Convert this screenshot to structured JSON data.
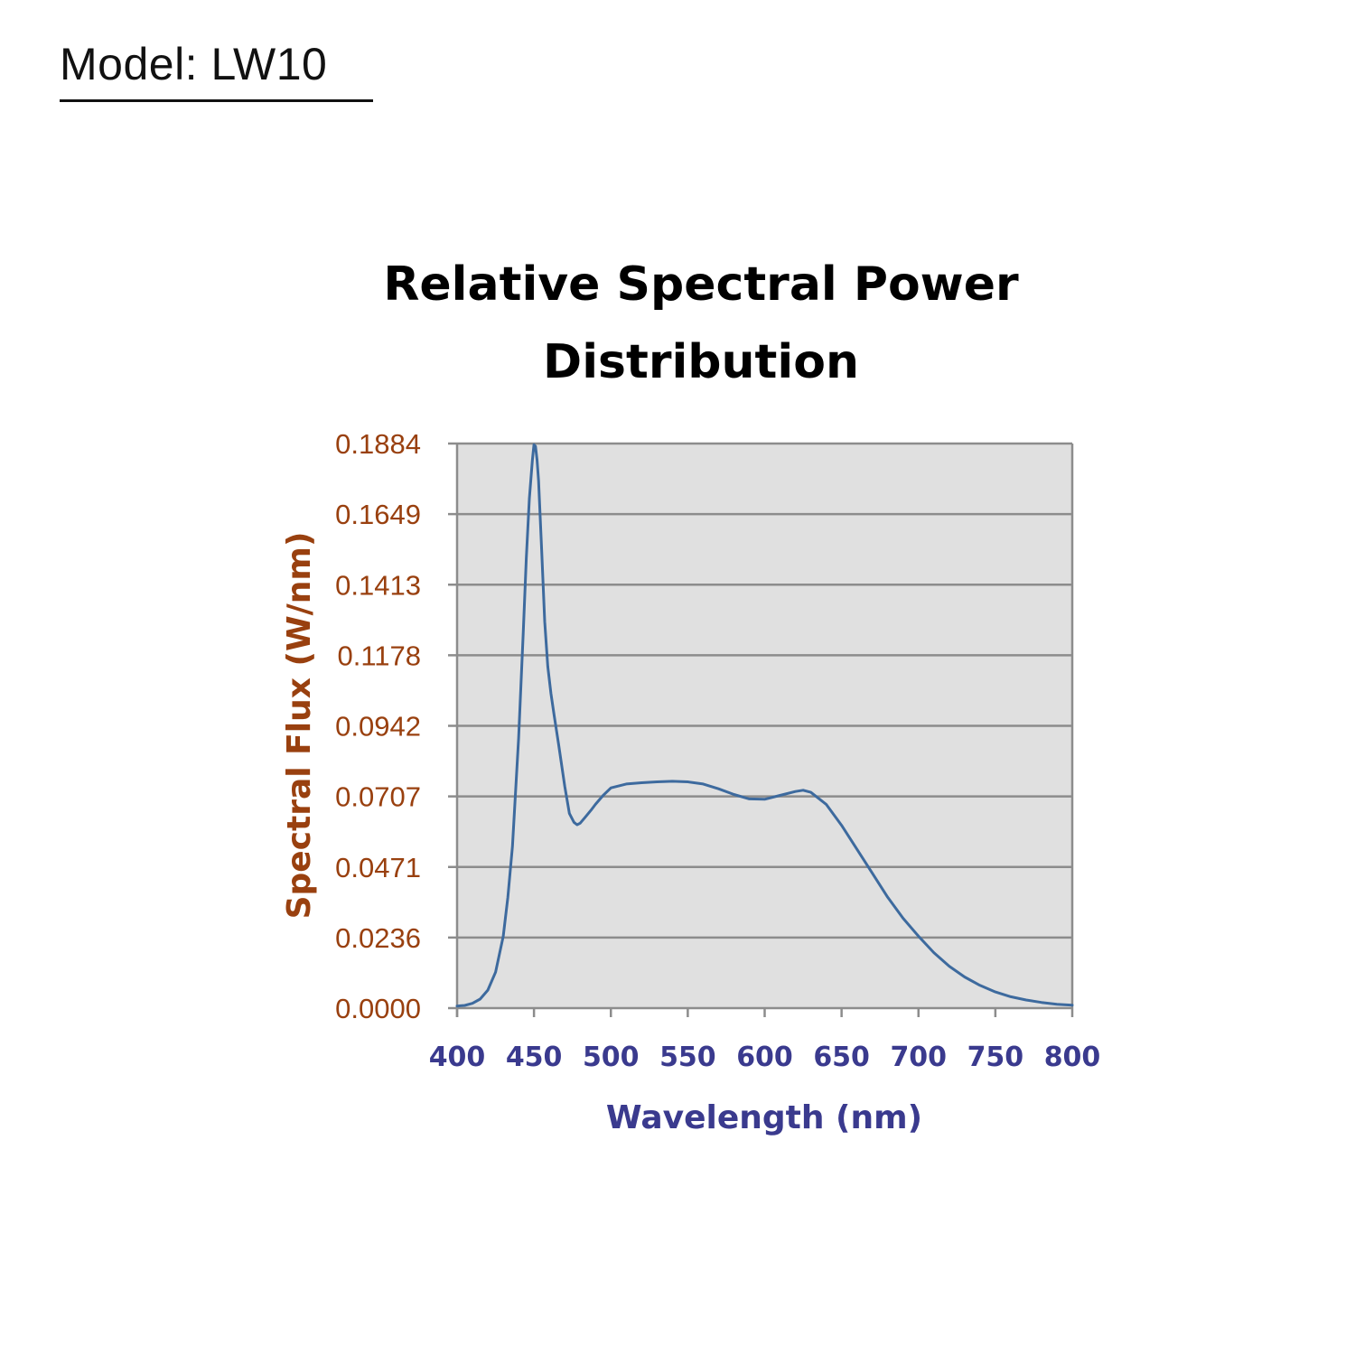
{
  "header": {
    "model_label": "Model: LW10"
  },
  "colors": {
    "plot_background": "#e0e0e0",
    "gridline": "#8c8c8c",
    "series_line": "#3d6a9e",
    "y_axis_text": "#99400f",
    "x_axis_text": "#3a3a8e"
  },
  "chart_data": {
    "type": "line",
    "title_lines": [
      "Relative Spectral Power",
      "Distribution"
    ],
    "xlabel": "Wavelength (nm)",
    "ylabel": "Spectral Flux (W/nm)",
    "xlim": [
      400,
      800
    ],
    "ylim": [
      0,
      0.1884
    ],
    "xticks": [
      "400",
      "450",
      "500",
      "550",
      "600",
      "650",
      "700",
      "750",
      "800"
    ],
    "yticks": [
      "0.0000",
      "0.0236",
      "0.0471",
      "0.0707",
      "0.0942",
      "0.1178",
      "0.1413",
      "0.1649",
      "0.1884"
    ],
    "grid": true,
    "legend": false,
    "series": [
      {
        "x": [
          400,
          405,
          410,
          415,
          420,
          425,
          430,
          433,
          436,
          440,
          443,
          445,
          447,
          449,
          450,
          451,
          452,
          453,
          455,
          457,
          459,
          461,
          463,
          466,
          470,
          473,
          476,
          478,
          480,
          483,
          487,
          490,
          495,
          500,
          510,
          520,
          530,
          540,
          550,
          560,
          570,
          580,
          590,
          600,
          610,
          620,
          625,
          630,
          640,
          650,
          660,
          670,
          680,
          690,
          700,
          710,
          720,
          730,
          740,
          750,
          760,
          770,
          780,
          790,
          800
        ],
        "y": [
          0.0007,
          0.0009,
          0.0016,
          0.003,
          0.006,
          0.012,
          0.024,
          0.037,
          0.054,
          0.09,
          0.125,
          0.15,
          0.17,
          0.183,
          0.188,
          0.1875,
          0.183,
          0.176,
          0.153,
          0.129,
          0.114,
          0.105,
          0.098,
          0.088,
          0.074,
          0.065,
          0.062,
          0.0612,
          0.0617,
          0.0635,
          0.066,
          0.068,
          0.071,
          0.0735,
          0.0748,
          0.0752,
          0.0755,
          0.0757,
          0.0755,
          0.0748,
          0.0732,
          0.0713,
          0.0698,
          0.0697,
          0.071,
          0.0723,
          0.0727,
          0.072,
          0.068,
          0.061,
          0.053,
          0.045,
          0.037,
          0.03,
          0.024,
          0.0185,
          0.014,
          0.0104,
          0.0076,
          0.0054,
          0.0038,
          0.0027,
          0.0019,
          0.0013,
          0.001
        ]
      }
    ]
  }
}
